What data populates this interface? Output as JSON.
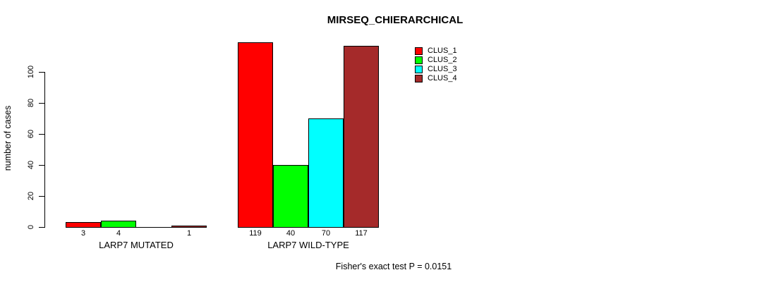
{
  "title": "MIRSEQ_CHIERARCHICAL",
  "chart_data": {
    "type": "bar",
    "title": "MIRSEQ_CHIERARCHICAL",
    "ylabel": "number of cases",
    "xlabel": "",
    "ylim": [
      0,
      100
    ],
    "yticks": [
      "0",
      "20",
      "40",
      "60",
      "80",
      "100"
    ],
    "grid": false,
    "legend_position": "top-right",
    "series": [
      {
        "name": "CLUS_1",
        "color": "#FF0000"
      },
      {
        "name": "CLUS_2",
        "color": "#00FF00"
      },
      {
        "name": "CLUS_3",
        "color": "#00FFFF"
      },
      {
        "name": "CLUS_4",
        "color": "#A52A2A"
      }
    ],
    "groups": [
      {
        "label": "LARP7 MUTATED",
        "values": [
          3,
          4,
          0,
          1
        ],
        "value_labels": [
          "3",
          "4",
          "",
          "1"
        ]
      },
      {
        "label": "LARP7 WILD-TYPE",
        "values": [
          119,
          40,
          70,
          117
        ],
        "value_labels": [
          "119",
          "40",
          "70",
          "117"
        ]
      }
    ],
    "annotation": "Fisher's exact test P = 0.0151"
  }
}
